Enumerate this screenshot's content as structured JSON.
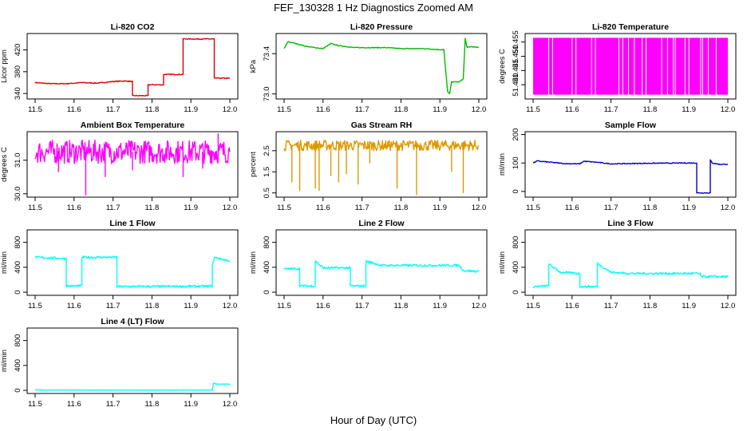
{
  "figure": {
    "title": "FEF_130328  1 Hz Diagnostics Zoomed AM",
    "xlabel": "Hour of Day (UTC)"
  },
  "chart_data": [
    {
      "type": "line",
      "title": "Li-820 CO2",
      "ylabel": "Licor ppm",
      "color": "#dd0000",
      "xlim": [
        11.5,
        12.0
      ],
      "ylim": [
        330,
        450
      ],
      "xticks": [
        "11.5",
        "11.6",
        "11.7",
        "11.8",
        "11.9",
        "12.0"
      ],
      "yticks": [
        "340",
        "380",
        "420"
      ],
      "x": [
        11.5,
        11.54,
        11.58,
        11.62,
        11.66,
        11.7,
        11.73,
        11.75,
        11.75,
        11.79,
        11.79,
        11.83,
        11.83,
        11.88,
        11.88,
        11.96,
        11.96,
        12.0
      ],
      "y": [
        360,
        358,
        358,
        360,
        359,
        362,
        363,
        362,
        336,
        336,
        356,
        356,
        375,
        375,
        440,
        440,
        368,
        368
      ],
      "noise": 0.8
    },
    {
      "type": "line",
      "title": "Li-820 Pressure",
      "ylabel": "kPa",
      "color": "#00bb00",
      "xlim": [
        11.5,
        12.0
      ],
      "ylim": [
        72.95,
        73.6
      ],
      "xticks": [
        "11.5",
        "11.6",
        "11.7",
        "11.8",
        "11.9",
        "12.0"
      ],
      "yticks": [
        "73.0",
        "73.4"
      ],
      "x": [
        11.5,
        11.51,
        11.53,
        11.56,
        11.6,
        11.62,
        11.64,
        11.68,
        11.72,
        11.76,
        11.8,
        11.82,
        11.86,
        11.9,
        11.91,
        11.92,
        11.925,
        11.93,
        11.95,
        11.96,
        11.965,
        11.97,
        11.98,
        12.0
      ],
      "y": [
        73.45,
        73.52,
        73.5,
        73.47,
        73.45,
        73.5,
        73.48,
        73.46,
        73.46,
        73.46,
        73.45,
        73.45,
        73.45,
        73.44,
        73.44,
        73.02,
        73.0,
        73.12,
        73.12,
        73.15,
        73.55,
        73.46,
        73.47,
        73.46
      ],
      "noise": 0.004
    },
    {
      "type": "band",
      "title": "Li-820 Temperature",
      "ylabel": "degrees C",
      "color": "#ff00ff",
      "xlim": [
        11.5,
        12.0
      ],
      "ylim": [
        51.435,
        51.458
      ],
      "xticks": [
        "11.5",
        "11.6",
        "11.7",
        "11.8",
        "11.9",
        "12.0"
      ],
      "yticks": [
        "51.440",
        "51.445",
        "51.450",
        "51.455"
      ],
      "band": [
        51.4365,
        51.4565
      ],
      "gaps": [
        11.54,
        11.55,
        11.6,
        11.61,
        11.65,
        11.66,
        11.72,
        11.73,
        11.745,
        11.76,
        11.78,
        11.79,
        11.83,
        11.845,
        11.86,
        11.865,
        11.89,
        11.9,
        11.93,
        11.935,
        11.95,
        11.97
      ]
    },
    {
      "type": "line",
      "title": "Ambient Box Temperature",
      "ylabel": "degrees C",
      "color": "#ff00ff",
      "xlim": [
        11.5,
        12.0
      ],
      "ylim": [
        29.9,
        31.85
      ],
      "xticks": [
        "11.5",
        "11.6",
        "11.7",
        "11.8",
        "11.9",
        "12.0"
      ],
      "yticks": [
        "30.0",
        "31.0"
      ],
      "x": [
        11.5,
        12.0
      ],
      "y": [
        31.25,
        31.25
      ],
      "noise": 0.35,
      "spikes_x": [
        11.56,
        11.63,
        11.68,
        11.75,
        11.88,
        11.93,
        11.97
      ],
      "spikes_y": [
        30.65,
        29.95,
        30.5,
        30.7,
        30.5,
        30.75,
        31.8
      ]
    },
    {
      "type": "line",
      "title": "Gas Stream RH",
      "ylabel": "percent",
      "color": "#dd9900",
      "xlim": [
        11.5,
        12.0
      ],
      "ylim": [
        0.3,
        3.4
      ],
      "xticks": [
        "11.5",
        "11.6",
        "11.7",
        "11.8",
        "11.9",
        "12.0"
      ],
      "yticks": [
        "0.5",
        "1.5",
        "2.5"
      ],
      "x": [
        11.5,
        12.0
      ],
      "y": [
        2.75,
        2.75
      ],
      "noise": 0.25,
      "spikes_x": [
        11.52,
        11.54,
        11.58,
        11.59,
        11.62,
        11.64,
        11.66,
        11.69,
        11.72,
        11.79,
        11.84,
        11.93,
        11.96
      ],
      "spikes_y": [
        1.0,
        0.6,
        0.7,
        0.6,
        1.3,
        1.0,
        1.4,
        0.9,
        1.9,
        0.7,
        0.4,
        1.5,
        0.5
      ]
    },
    {
      "type": "line",
      "title": "Sample Flow",
      "ylabel": "ml/min",
      "color": "#0000cc",
      "xlim": [
        11.5,
        12.0
      ],
      "ylim": [
        -20,
        210
      ],
      "xticks": [
        "11.5",
        "11.6",
        "11.7",
        "11.8",
        "11.9",
        "12.0"
      ],
      "yticks": [
        "0",
        "100",
        "200"
      ],
      "x": [
        11.5,
        11.51,
        11.55,
        11.58,
        11.62,
        11.63,
        11.66,
        11.7,
        11.8,
        11.9,
        11.92,
        11.92,
        11.955,
        11.955,
        11.96,
        11.98,
        12.0
      ],
      "y": [
        100,
        107,
        102,
        98,
        97,
        106,
        103,
        97,
        99,
        100,
        100,
        -5,
        -5,
        110,
        100,
        95,
        96
      ],
      "noise": 1.5
    },
    {
      "type": "line",
      "title": "Line 1 Flow",
      "ylabel": "ml/min",
      "color": "#00ffff",
      "xlim": [
        11.5,
        12.0
      ],
      "ylim": [
        -50,
        1000
      ],
      "xticks": [
        "11.5",
        "11.6",
        "11.7",
        "11.8",
        "11.9",
        "12.0"
      ],
      "yticks": [
        "0",
        "400",
        "800"
      ],
      "x": [
        11.5,
        11.58,
        11.58,
        11.62,
        11.62,
        11.71,
        11.71,
        11.955,
        11.955,
        11.96,
        12.0
      ],
      "y": [
        560,
        540,
        100,
        100,
        560,
        560,
        90,
        95,
        420,
        560,
        500
      ],
      "noise": 18
    },
    {
      "type": "line",
      "title": "Line 2 Flow",
      "ylabel": "ml/min",
      "color": "#00ffff",
      "xlim": [
        11.5,
        12.0
      ],
      "ylim": [
        -50,
        1000
      ],
      "xticks": [
        "11.5",
        "11.6",
        "11.7",
        "11.8",
        "11.9",
        "12.0"
      ],
      "yticks": [
        "0",
        "400",
        "800"
      ],
      "x": [
        11.5,
        11.54,
        11.54,
        11.58,
        11.58,
        11.6,
        11.67,
        11.67,
        11.71,
        11.71,
        11.75,
        11.95,
        11.96,
        12.0
      ],
      "y": [
        370,
        380,
        100,
        100,
        500,
        390,
        390,
        100,
        100,
        500,
        430,
        430,
        350,
        330
      ],
      "noise": 18
    },
    {
      "type": "line",
      "title": "Line 3 Flow",
      "ylabel": "ml/min",
      "color": "#00ffff",
      "xlim": [
        11.5,
        12.0
      ],
      "ylim": [
        -50,
        1000
      ],
      "xticks": [
        "11.5",
        "11.6",
        "11.7",
        "11.8",
        "11.9",
        "12.0"
      ],
      "yticks": [
        "0",
        "400",
        "800"
      ],
      "x": [
        11.5,
        11.54,
        11.54,
        11.57,
        11.62,
        11.62,
        11.665,
        11.665,
        11.7,
        11.75,
        11.93,
        11.93,
        12.0
      ],
      "y": [
        90,
        100,
        450,
        320,
        300,
        90,
        90,
        460,
        320,
        300,
        300,
        250,
        250
      ],
      "noise": 18
    },
    {
      "type": "line",
      "title": "Line 4 (LT) Flow",
      "ylabel": "ml/min",
      "color": "#00ffff",
      "xlim": [
        11.5,
        12.0
      ],
      "ylim": [
        -50,
        1000
      ],
      "xticks": [
        "11.5",
        "11.6",
        "11.7",
        "11.8",
        "11.9",
        "12.0"
      ],
      "yticks": [
        "0",
        "400",
        "800"
      ],
      "x": [
        11.5,
        11.955,
        11.958,
        11.965,
        12.0
      ],
      "y": [
        5,
        5,
        120,
        100,
        100
      ],
      "noise": 3
    }
  ]
}
